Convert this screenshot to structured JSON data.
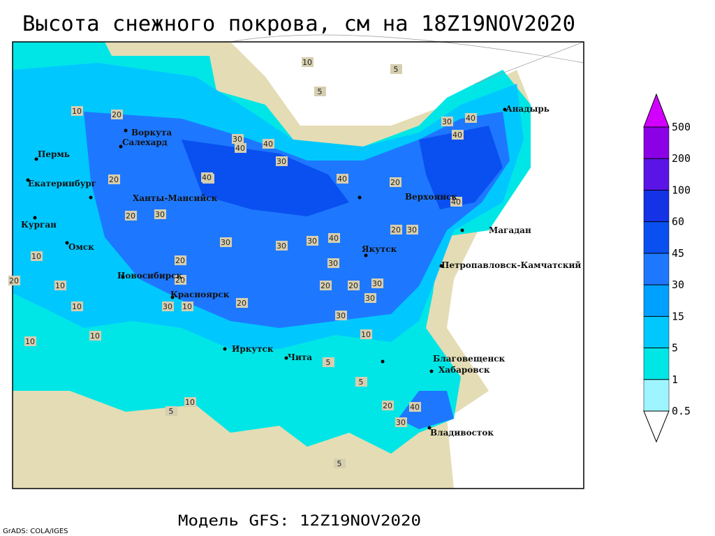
{
  "title": "Высота снежного покрова, см на 18Z19NOV2020",
  "model": "Модель GFS: 12Z19NOV2020",
  "credit": "GrADS: COLA/IGES",
  "colorbar": {
    "levels": [
      0.5,
      1,
      5,
      15,
      30,
      45,
      60,
      100,
      200,
      500
    ],
    "colors": [
      "#ffffff",
      "#9ff5ff",
      "#00e6e6",
      "#00c8ff",
      "#00a0ff",
      "#1e78ff",
      "#0a50f0",
      "#1432e6",
      "#5a14e6",
      "#8c00e6",
      "#d200ff"
    ]
  },
  "cities": [
    "Пермь",
    "Екатеринбург",
    "Ханты-Мансийск",
    "Курган",
    "Омск",
    "Новосибирск",
    "Красноярск",
    "Иркутск",
    "Чита",
    "Благовещенск",
    "Хабаровск",
    "Владивосток",
    "Якутск",
    "Верхоянск",
    "Магадан",
    "Петропавловск-Камчатский",
    "Анадырь",
    "Воркута",
    "Салехард"
  ],
  "contour_labels": [
    10,
    5,
    5,
    10,
    20,
    30,
    40,
    40,
    30,
    40,
    40,
    30,
    40,
    40,
    20,
    20,
    30,
    30,
    30,
    40,
    30,
    20,
    30,
    30,
    20,
    20,
    30,
    10,
    10,
    20,
    10,
    20,
    30,
    20,
    10,
    20,
    30,
    10,
    5,
    5,
    20,
    40,
    30,
    10,
    5,
    40,
    40,
    20,
    10,
    10,
    5,
    30
  ]
}
